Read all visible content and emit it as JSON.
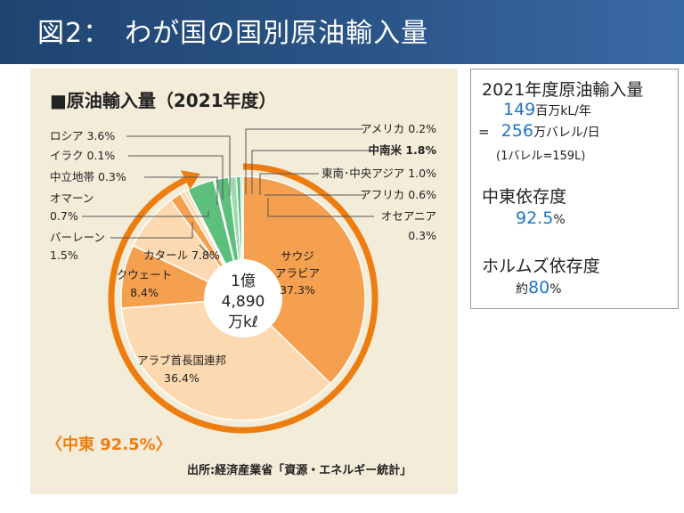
{
  "header": {
    "title": "図2：　わが国の国別原油輸入量"
  },
  "panel": {
    "title": "■原油輸入量（2021年度）",
    "center_line1": "1億",
    "center_line2": "4,890",
    "center_line3": "万kℓ",
    "middle_east_label": "〈中東 92.5%〉",
    "source": "出所:経済産業省「資源・エネルギー統計」"
  },
  "info": {
    "heading": "2021年度原油輸入量",
    "annual_value": "149",
    "annual_unit": "百万kL/年",
    "eq_sign": "=",
    "daily_value": "256",
    "daily_unit": "万バレル/日",
    "conversion": "(1バレル=159L)",
    "dependency_title": "中東依存度",
    "dependency_value": "92.5",
    "dependency_unit": "%",
    "hormuz_title": "ホルムズ依存度",
    "hormuz_prefix": "約",
    "hormuz_value": "80",
    "hormuz_unit": "%"
  },
  "chart_data": {
    "type": "pie",
    "title": "■原油輸入量（2021年度）",
    "total_label": "1億 4,890 万kℓ",
    "slices": [
      {
        "label": "サウジアラビア",
        "value": 37.3,
        "color": "#f5a04e",
        "group": "middle_east"
      },
      {
        "label": "アラブ首長国連邦",
        "value": 36.4,
        "color": "#fcd9b0",
        "group": "middle_east"
      },
      {
        "label": "クウェート",
        "value": 8.4,
        "color": "#f5a04e",
        "group": "middle_east"
      },
      {
        "label": "カタール",
        "value": 7.8,
        "color": "#fcd9b0",
        "group": "middle_east"
      },
      {
        "label": "バーレーン",
        "value": 1.5,
        "color": "#f5a04e",
        "group": "middle_east"
      },
      {
        "label": "オマーン",
        "value": 0.7,
        "color": "#fcd9b0",
        "group": "middle_east"
      },
      {
        "label": "中立地帯",
        "value": 0.3,
        "color": "#f5a04e",
        "group": "middle_east"
      },
      {
        "label": "イラク",
        "value": 0.1,
        "color": "#fcd9b0",
        "group": "middle_east"
      },
      {
        "label": "ロシア",
        "value": 3.6,
        "color": "#5cbf7c",
        "group": "other"
      },
      {
        "label": "アメリカ",
        "value": 0.2,
        "color": "#9fd9b0",
        "group": "other"
      },
      {
        "label": "中南米",
        "value": 1.8,
        "color": "#5cbf7c",
        "group": "other"
      },
      {
        "label": "東南・中央アジア",
        "value": 1.0,
        "color": "#9fd9b0",
        "group": "other"
      },
      {
        "label": "アフリカ",
        "value": 0.6,
        "color": "#5cbf7c",
        "group": "other"
      },
      {
        "label": "オセアニア",
        "value": 0.3,
        "color": "#9fd9b0",
        "group": "other"
      }
    ],
    "annotations": [
      {
        "text": "サウジ",
        "slice": "サウジアラビア"
      },
      {
        "text": "アラビア",
        "slice": "サウジアラビア"
      },
      {
        "text": "37.3%",
        "slice": "サウジアラビア"
      },
      {
        "text": "アラブ首長国連邦",
        "slice": "アラブ首長国連邦"
      },
      {
        "text": "36.4%",
        "slice": "アラブ首長国連邦"
      },
      {
        "text": "クウェート",
        "slice": "クウェート"
      },
      {
        "text": "8.4%",
        "slice": "クウェート"
      },
      {
        "text": "カタール 7.8%",
        "slice": "カタール"
      },
      {
        "text": "バーレーン",
        "slice": "バーレーン"
      },
      {
        "text": "1.5%",
        "slice": "バーレーン"
      },
      {
        "text": "オマーン",
        "slice": "オマーン"
      },
      {
        "text": "0.7%",
        "slice": "オマーン"
      },
      {
        "text": "中立地帯 0.3%",
        "slice": "中立地帯"
      },
      {
        "text": "イラク 0.1%",
        "slice": "イラク"
      },
      {
        "text": "ロシア 3.6%",
        "slice": "ロシア"
      },
      {
        "text": "アメリカ 0.2%",
        "slice": "アメリカ"
      },
      {
        "text": "中南米 1.8%",
        "slice": "中南米"
      },
      {
        "text": "東南･中央アジア 1.0%",
        "slice": "東南・中央アジア"
      },
      {
        "text": "アフリカ 0.6%",
        "slice": "アフリカ"
      },
      {
        "text": "オセアニア",
        "slice": "オセアニア"
      },
      {
        "text": "0.3%",
        "slice": "オセアニア"
      }
    ],
    "accent_color": "#ee7d10"
  }
}
